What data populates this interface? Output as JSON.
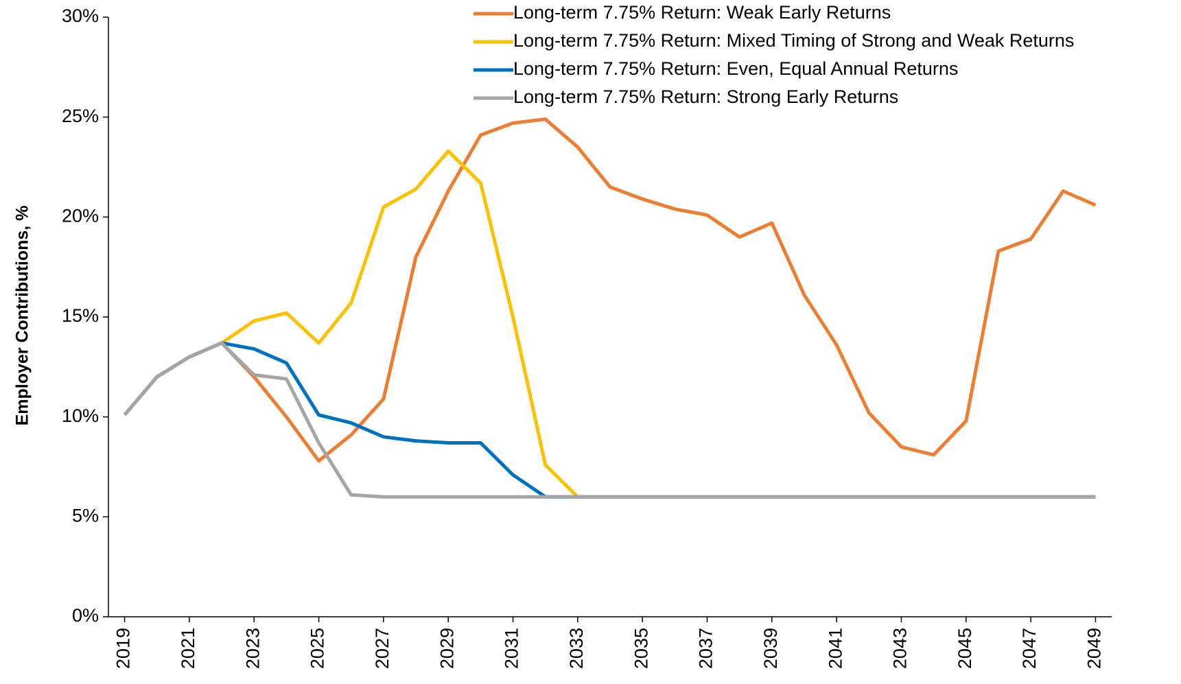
{
  "chart_data": {
    "type": "line",
    "y_label": "Employer Contributions, %",
    "x": [
      2019,
      2020,
      2021,
      2022,
      2023,
      2024,
      2025,
      2026,
      2027,
      2028,
      2029,
      2030,
      2031,
      2032,
      2033,
      2034,
      2035,
      2036,
      2037,
      2038,
      2039,
      2040,
      2041,
      2042,
      2043,
      2044,
      2045,
      2046,
      2047,
      2048,
      2049
    ],
    "xlim": [
      2018.5,
      2049.5
    ],
    "xticks": [
      2019,
      2021,
      2023,
      2025,
      2027,
      2029,
      2031,
      2033,
      2035,
      2037,
      2039,
      2041,
      2043,
      2045,
      2047,
      2049
    ],
    "ylim": [
      0,
      30
    ],
    "yticks": [
      {
        "value": 0,
        "label": "0%"
      },
      {
        "value": 5,
        "label": "5%"
      },
      {
        "value": 10,
        "label": "10%"
      },
      {
        "value": 15,
        "label": "15%"
      },
      {
        "value": 20,
        "label": "20%"
      },
      {
        "value": 25,
        "label": "25%"
      },
      {
        "value": 30,
        "label": "30%"
      }
    ],
    "grid": false,
    "legend": "top",
    "series": [
      {
        "name": "Long-term 7.75% Return: Weak Early Returns",
        "color": "#ED7D31",
        "values": [
          10.1,
          12.0,
          13.0,
          13.7,
          12.0,
          10.0,
          7.8,
          9.1,
          10.9,
          18.0,
          21.3,
          24.1,
          24.7,
          24.9,
          23.5,
          21.5,
          20.9,
          20.4,
          20.1,
          19.0,
          19.7,
          16.1,
          13.6,
          10.2,
          8.5,
          8.1,
          9.8,
          18.3,
          18.9,
          21.3,
          20.6
        ]
      },
      {
        "name": "Long-term 7.75% Return: Mixed Timing of Strong and Weak Returns",
        "color": "#FFC000",
        "values": [
          10.1,
          12.0,
          13.0,
          13.7,
          14.8,
          15.2,
          13.7,
          15.7,
          20.5,
          21.4,
          23.3,
          21.7,
          15.0,
          7.6,
          6.0,
          6.0,
          6.0,
          6.0,
          6.0,
          6.0,
          6.0,
          6.0,
          6.0,
          6.0,
          6.0,
          6.0,
          6.0,
          6.0,
          6.0,
          6.0,
          6.0
        ]
      },
      {
        "name": "Long-term 7.75% Return: Even, Equal Annual Returns",
        "color": "#0070C0",
        "values": [
          10.1,
          12.0,
          13.0,
          13.7,
          13.4,
          12.7,
          10.1,
          9.7,
          9.0,
          8.8,
          8.7,
          8.7,
          7.1,
          6.0,
          6.0,
          6.0,
          6.0,
          6.0,
          6.0,
          6.0,
          6.0,
          6.0,
          6.0,
          6.0,
          6.0,
          6.0,
          6.0,
          6.0,
          6.0,
          6.0,
          6.0
        ]
      },
      {
        "name": "Long-term 7.75% Return: Strong Early Returns",
        "color": "#A5A5A5",
        "values": [
          10.1,
          12.0,
          13.0,
          13.7,
          12.1,
          11.9,
          8.7,
          6.1,
          6.0,
          6.0,
          6.0,
          6.0,
          6.0,
          6.0,
          6.0,
          6.0,
          6.0,
          6.0,
          6.0,
          6.0,
          6.0,
          6.0,
          6.0,
          6.0,
          6.0,
          6.0,
          6.0,
          6.0,
          6.0,
          6.0,
          6.0
        ]
      }
    ]
  }
}
